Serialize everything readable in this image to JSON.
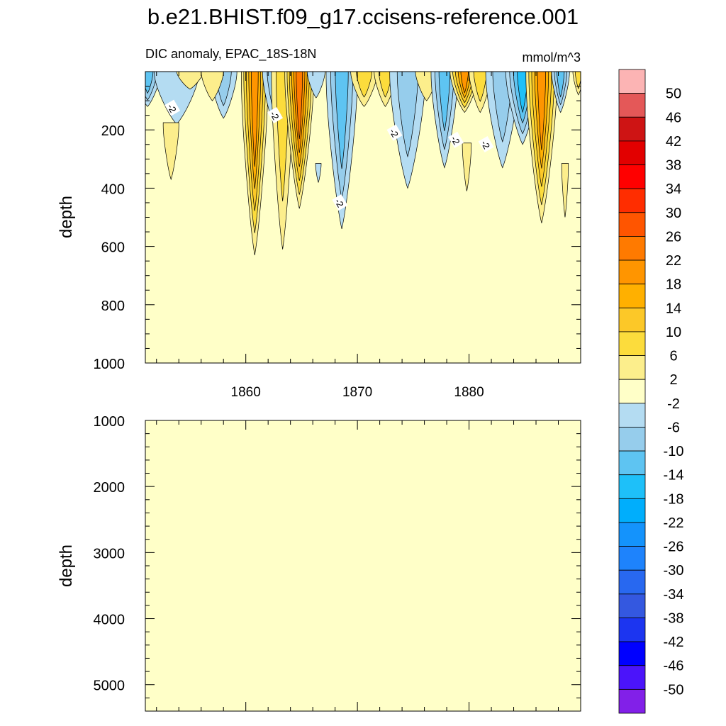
{
  "title": "b.e21.BHIST.f09_g17.ccisens-reference.001",
  "colors": {
    "background_fill": "#ffffc8",
    "label_box": "#ffffff",
    "line": "#000000"
  },
  "chart_data": [
    {
      "type": "heatmap",
      "subtitle_left": "DIC anomaly, EPAC_18S-18N",
      "subtitle_right": "mmol/m^3",
      "ylabel": "depth",
      "xlim": [
        1851,
        1890
      ],
      "ylim": [
        1000,
        0
      ],
      "y_reversed": true,
      "x_ticks": [
        1860,
        1870,
        1880
      ],
      "y_ticks": [
        200,
        400,
        600,
        800,
        1000
      ],
      "contour_labels": [
        {
          "text": "-2",
          "x": 1853.4,
          "y": 125
        },
        {
          "text": "-2",
          "x": 1862.6,
          "y": 150
        },
        {
          "text": "-2",
          "x": 1873.3,
          "y": 210
        },
        {
          "text": "-2",
          "x": 1878.8,
          "y": 235
        },
        {
          "text": "-2",
          "x": 1881.5,
          "y": 250
        },
        {
          "text": "-2",
          "x": 1868.4,
          "y": 450
        }
      ],
      "features": [
        {
          "x": 1851.2,
          "y_top": 0,
          "y_bottom": 120,
          "halfwidth": 1.2,
          "level": -12
        },
        {
          "x": 1853.8,
          "y_top": 0,
          "y_bottom": 180,
          "halfwidth": 2.0,
          "level": -3
        },
        {
          "x": 1853.3,
          "y_top": 180,
          "y_bottom": 370,
          "halfwidth": 0.7,
          "level": 3
        },
        {
          "x": 1855.0,
          "y_top": 0,
          "y_bottom": 60,
          "halfwidth": 1.2,
          "level": 4
        },
        {
          "x": 1858.0,
          "y_top": 0,
          "y_bottom": 160,
          "halfwidth": 1.2,
          "level": -8
        },
        {
          "x": 1857.0,
          "y_top": 0,
          "y_bottom": 100,
          "halfwidth": 1.0,
          "level": 3
        },
        {
          "x": 1860.8,
          "y_top": 0,
          "y_bottom": 630,
          "halfwidth": 1.2,
          "level": 20
        },
        {
          "x": 1862.5,
          "y_top": 0,
          "y_bottom": 180,
          "halfwidth": 1.0,
          "level": -8
        },
        {
          "x": 1863.3,
          "y_top": 0,
          "y_bottom": 610,
          "halfwidth": 1.0,
          "level": 6
        },
        {
          "x": 1864.8,
          "y_top": 0,
          "y_bottom": 470,
          "halfwidth": 1.3,
          "level": 24
        },
        {
          "x": 1866.3,
          "y_top": 0,
          "y_bottom": 90,
          "halfwidth": 0.8,
          "level": -4
        },
        {
          "x": 1866.5,
          "y_top": 320,
          "y_bottom": 380,
          "halfwidth": 0.25,
          "level": -3
        },
        {
          "x": 1868.6,
          "y_top": 0,
          "y_bottom": 540,
          "halfwidth": 1.4,
          "level": -10
        },
        {
          "x": 1870.6,
          "y_top": 0,
          "y_bottom": 120,
          "halfwidth": 1.2,
          "level": 7
        },
        {
          "x": 1872.5,
          "y_top": 0,
          "y_bottom": 120,
          "halfwidth": 1.0,
          "level": 6
        },
        {
          "x": 1874.5,
          "y_top": 0,
          "y_bottom": 400,
          "halfwidth": 1.6,
          "level": -8
        },
        {
          "x": 1876.2,
          "y_top": 0,
          "y_bottom": 100,
          "halfwidth": 1.0,
          "level": 4
        },
        {
          "x": 1877.8,
          "y_top": 0,
          "y_bottom": 330,
          "halfwidth": 1.2,
          "level": -10
        },
        {
          "x": 1879.6,
          "y_top": 0,
          "y_bottom": 140,
          "halfwidth": 1.3,
          "level": 18
        },
        {
          "x": 1879.8,
          "y_top": 250,
          "y_bottom": 410,
          "halfwidth": 0.4,
          "level": 3
        },
        {
          "x": 1881.0,
          "y_top": 0,
          "y_bottom": 140,
          "halfwidth": 1.0,
          "level": 6
        },
        {
          "x": 1883.0,
          "y_top": 0,
          "y_bottom": 330,
          "halfwidth": 1.5,
          "level": -6
        },
        {
          "x": 1884.8,
          "y_top": 0,
          "y_bottom": 250,
          "halfwidth": 1.5,
          "level": -16
        },
        {
          "x": 1886.5,
          "y_top": 0,
          "y_bottom": 520,
          "halfwidth": 1.4,
          "level": 18
        },
        {
          "x": 1888.2,
          "y_top": 0,
          "y_bottom": 140,
          "halfwidth": 0.8,
          "level": -10
        },
        {
          "x": 1889.8,
          "y_top": 0,
          "y_bottom": 80,
          "halfwidth": 0.5,
          "level": 6
        },
        {
          "x": 1888.6,
          "y_top": 320,
          "y_bottom": 500,
          "halfwidth": 0.3,
          "level": 3
        }
      ]
    },
    {
      "type": "heatmap",
      "ylabel": "depth",
      "xlim": [
        1851,
        1890
      ],
      "ylim": [
        5400,
        1000
      ],
      "y_reversed": true,
      "y_ticks": [
        1000,
        2000,
        3000,
        4000,
        5000
      ],
      "uniform_level": 0
    }
  ],
  "colorbar": {
    "labels": [
      "50",
      "46",
      "42",
      "38",
      "34",
      "30",
      "26",
      "22",
      "18",
      "14",
      "10",
      "6",
      "2",
      "-2",
      "-6",
      "-10",
      "-14",
      "-18",
      "-22",
      "-26",
      "-30",
      "-34",
      "-38",
      "-42",
      "-46",
      "-50"
    ],
    "colors": [
      "#fcb4b4",
      "#e45858",
      "#ce1414",
      "#e20000",
      "#ff0000",
      "#ff2d00",
      "#ff5500",
      "#ff7a00",
      "#ff9500",
      "#ffb000",
      "#fcc828",
      "#fcdc3c",
      "#fcee8c",
      "#ffffc8",
      "#b4dcf2",
      "#96cdec",
      "#5ec4f2",
      "#1ec0f9",
      "#00aefc",
      "#1493fc",
      "#1e83fc",
      "#2868f0",
      "#3458e0",
      "#1c35f0",
      "#0000ff",
      "#4b14fa",
      "#8220e8"
    ]
  }
}
